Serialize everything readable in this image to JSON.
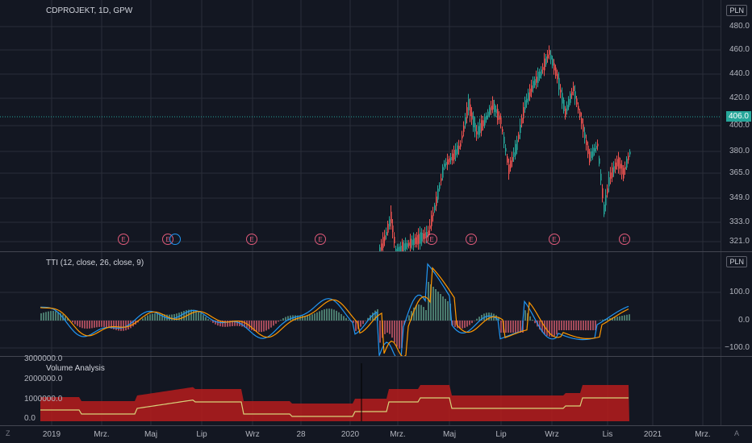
{
  "main": {
    "symbol_title": "CDPROJEKT, 1D, GPW",
    "currency_badge": "PLN",
    "price_labels": [
      "480.0",
      "460.0",
      "440.0",
      "420.0",
      "400.0",
      "380.0",
      "365.0",
      "349.0",
      "333.0",
      "321.0"
    ],
    "current_price": "406.0",
    "earnings_marker": "E"
  },
  "oscillator": {
    "title": "TTI (12, close, 26, close, 9)",
    "currency_badge": "PLN",
    "labels": [
      "100.0",
      "0.0",
      "−100.0"
    ]
  },
  "volume": {
    "title": "Volume Analysis",
    "labels": [
      "3000000.0",
      "2000000.0",
      "1000000.0",
      "0.0"
    ]
  },
  "time_axis": {
    "labels": [
      "2019",
      "Mrz.",
      "Maj",
      "Lip",
      "Wrz",
      "28",
      "2020",
      "Mrz.",
      "Maj",
      "Lip",
      "Wrz",
      "Lis",
      "2021",
      "Mrz."
    ],
    "corner_left": "Z",
    "corner_right": "A"
  },
  "colors": {
    "up": "#26a69a",
    "down": "#ef5350",
    "macd": "#2196f3",
    "signal": "#ff9800",
    "volume_fill": "#b71c1c",
    "background": "#131722"
  }
}
